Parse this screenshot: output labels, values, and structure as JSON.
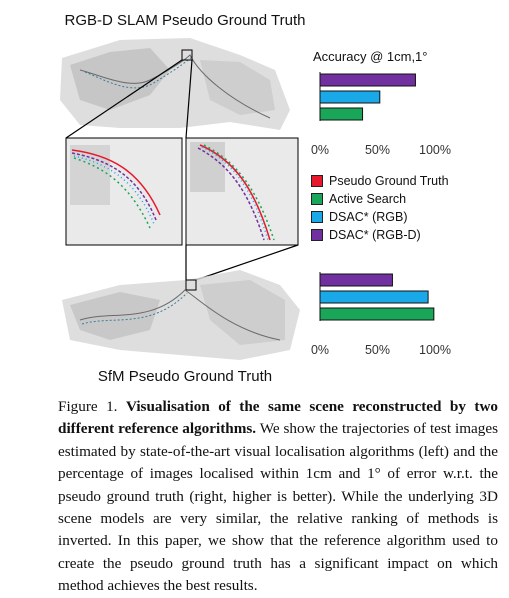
{
  "figure": {
    "top_title": "RGB-D SLAM Pseudo Ground Truth",
    "bottom_title": "SfM Pseudo Ground Truth",
    "legend": [
      {
        "label": "Pseudo Ground Truth",
        "color": "#e8192c"
      },
      {
        "label": "Active Search",
        "color": "#1aa658"
      },
      {
        "label": "DSAC* (RGB)",
        "color": "#19a9e8"
      },
      {
        "label": "DSAC* (RGB-D)",
        "color": "#7030a0"
      }
    ]
  },
  "chart_data": [
    {
      "type": "bar",
      "title": "Accuracy @ 1cm,1°",
      "orientation": "horizontal",
      "xlim": [
        0,
        100
      ],
      "tick_labels": [
        "0%",
        "50%",
        "100%"
      ],
      "categories": [
        "DSAC* (RGB-D)",
        "DSAC* (RGB)",
        "Active Search"
      ],
      "values": [
        83,
        52,
        37
      ],
      "colors": [
        "#7030a0",
        "#19a9e8",
        "#1aa658"
      ]
    },
    {
      "type": "bar",
      "orientation": "horizontal",
      "xlim": [
        0,
        100
      ],
      "tick_labels": [
        "0%",
        "50%",
        "100%"
      ],
      "categories": [
        "DSAC* (RGB-D)",
        "DSAC* (RGB)",
        "Active Search"
      ],
      "values": [
        63,
        94,
        99
      ],
      "colors": [
        "#7030a0",
        "#19a9e8",
        "#1aa658"
      ]
    }
  ],
  "caption": {
    "label": "Figure 1.",
    "bold": "Visualisation of the same scene reconstructed by two different reference algorithms.",
    "text": " We show the trajectories of test images estimated by state-of-the-art visual localisation algorithms (left) and the percentage of images localised within 1cm and 1° of error w.r.t. the pseudo ground truth (right, higher is better). While the underlying 3D scene models are very similar, the relative ranking of methods is inverted. In this paper, we show that the reference algorithm used to create the pseudo ground truth has a significant impact on which method achieves the best results."
  }
}
